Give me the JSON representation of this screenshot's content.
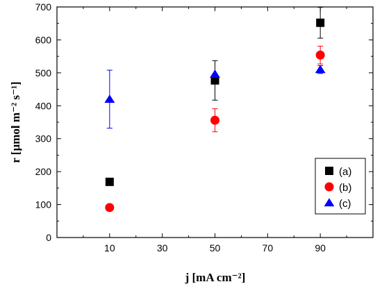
{
  "chart_data": {
    "type": "scatter",
    "xlabel": "j [mA cm⁻²]",
    "ylabel": "r [µmol m⁻² s⁻¹]",
    "xlim": [
      -10,
      110
    ],
    "ylim": [
      0,
      700
    ],
    "x_ticks": [
      10,
      30,
      50,
      70,
      90
    ],
    "y_ticks": [
      0,
      100,
      200,
      300,
      400,
      500,
      600,
      700
    ],
    "grid": false,
    "legend_position": "bottom-right",
    "series": [
      {
        "name": "(a)",
        "marker": "square",
        "color": "#000000",
        "points": [
          {
            "x": 10,
            "y": 169,
            "err": 0
          },
          {
            "x": 50,
            "y": 477,
            "err": 60
          },
          {
            "x": 90,
            "y": 652,
            "err": 47
          }
        ]
      },
      {
        "name": "(b)",
        "marker": "circle",
        "color": "#ff0000",
        "points": [
          {
            "x": 10,
            "y": 91,
            "err": 0
          },
          {
            "x": 50,
            "y": 356,
            "err": 35
          },
          {
            "x": 90,
            "y": 554,
            "err": 27
          }
        ]
      },
      {
        "name": "(c)",
        "marker": "triangle",
        "color": "#0000ff",
        "points": [
          {
            "x": 10,
            "y": 420,
            "err": 88
          },
          {
            "x": 50,
            "y": 496,
            "err": 0
          },
          {
            "x": 90,
            "y": 510,
            "err": 12
          }
        ]
      }
    ]
  }
}
